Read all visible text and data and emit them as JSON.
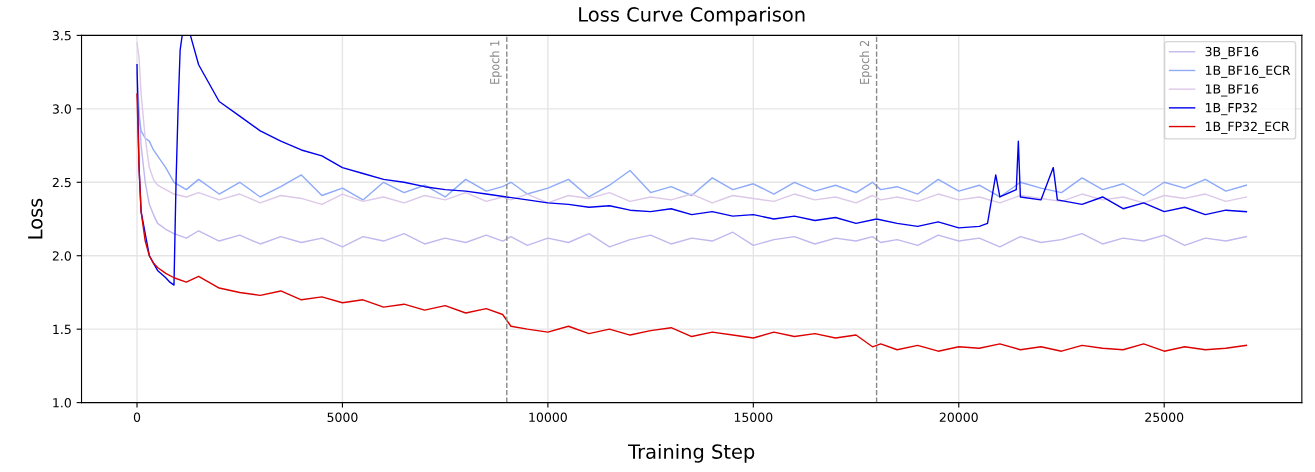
{
  "chart_data": {
    "type": "line",
    "title": "Loss Curve Comparison",
    "xlabel": "Training Step",
    "ylabel": "Loss",
    "xlim": [
      -1350,
      28350
    ],
    "ylim": [
      1.0,
      3.5
    ],
    "xticks": [
      0,
      5000,
      10000,
      15000,
      20000,
      25000
    ],
    "yticks": [
      {
        "value": 1.0,
        "label": "1.0"
      },
      1.5,
      {
        "value": 2.0,
        "label": "2.0"
      },
      2.5,
      {
        "value": 3.0,
        "label": "3.0"
      },
      3.5
    ],
    "grid": true,
    "legend": "top right",
    "x": [
      0,
      50,
      100,
      200,
      300,
      400,
      500,
      700,
      900,
      1200,
      1500,
      2000,
      2500,
      3000,
      3500,
      4000,
      4500,
      5000,
      5500,
      6000,
      6500,
      7000,
      7500,
      8000,
      8500,
      8900,
      9100,
      9500,
      10000,
      10500,
      11000,
      11500,
      12000,
      12500,
      13000,
      13500,
      14000,
      14500,
      15000,
      15500,
      16000,
      16500,
      17000,
      17500,
      17900,
      18100,
      18500,
      19000,
      19500,
      20000,
      20500,
      21000,
      21500,
      22000,
      22500,
      23000,
      23500,
      24000,
      24500,
      25000,
      25500,
      26000,
      26500,
      27000
    ],
    "series": [
      {
        "name": "3B_BF16",
        "color": "#c0b8ee",
        "values": [
          3.25,
          3.0,
          2.75,
          2.5,
          2.35,
          2.28,
          2.22,
          2.18,
          2.15,
          2.12,
          2.17,
          2.1,
          2.14,
          2.08,
          2.13,
          2.09,
          2.12,
          2.06,
          2.13,
          2.1,
          2.15,
          2.08,
          2.12,
          2.09,
          2.14,
          2.1,
          2.13,
          2.07,
          2.12,
          2.09,
          2.15,
          2.06,
          2.11,
          2.14,
          2.08,
          2.12,
          2.1,
          2.16,
          2.07,
          2.11,
          2.13,
          2.08,
          2.12,
          2.1,
          2.13,
          2.09,
          2.11,
          2.07,
          2.14,
          2.1,
          2.12,
          2.06,
          2.13,
          2.09,
          2.11,
          2.15,
          2.08,
          2.12,
          2.1,
          2.14,
          2.07,
          2.12,
          2.1,
          2.13
        ]
      },
      {
        "name": "1B_BF16_ECR",
        "color": "#8eaaf8",
        "values": [
          3.1,
          2.95,
          2.85,
          2.8,
          2.78,
          2.72,
          2.68,
          2.6,
          2.5,
          2.45,
          2.52,
          2.42,
          2.5,
          2.4,
          2.47,
          2.55,
          2.41,
          2.46,
          2.38,
          2.5,
          2.43,
          2.48,
          2.4,
          2.52,
          2.44,
          2.47,
          2.5,
          2.42,
          2.46,
          2.52,
          2.4,
          2.48,
          2.58,
          2.43,
          2.47,
          2.41,
          2.53,
          2.45,
          2.49,
          2.42,
          2.5,
          2.44,
          2.48,
          2.43,
          2.5,
          2.45,
          2.47,
          2.42,
          2.52,
          2.44,
          2.48,
          2.4,
          2.5,
          2.46,
          2.43,
          2.53,
          2.45,
          2.49,
          2.41,
          2.5,
          2.46,
          2.52,
          2.44,
          2.48
        ]
      },
      {
        "name": "1B_BF16",
        "color": "#dcc8e8",
        "values": [
          3.45,
          3.35,
          3.1,
          2.8,
          2.6,
          2.52,
          2.48,
          2.45,
          2.42,
          2.4,
          2.43,
          2.38,
          2.42,
          2.36,
          2.41,
          2.39,
          2.35,
          2.42,
          2.37,
          2.4,
          2.36,
          2.41,
          2.38,
          2.43,
          2.37,
          2.4,
          2.38,
          2.42,
          2.36,
          2.41,
          2.39,
          2.43,
          2.37,
          2.4,
          2.38,
          2.42,
          2.36,
          2.41,
          2.39,
          2.37,
          2.42,
          2.38,
          2.4,
          2.36,
          2.41,
          2.38,
          2.4,
          2.37,
          2.42,
          2.38,
          2.4,
          2.36,
          2.41,
          2.39,
          2.37,
          2.42,
          2.38,
          2.4,
          2.36,
          2.41,
          2.39,
          2.42,
          2.37,
          2.4
        ]
      },
      {
        "name": "1B_FP32",
        "color": "#0000ee",
        "x": [
          0,
          50,
          100,
          200,
          300,
          400,
          500,
          700,
          800,
          900,
          950,
          1000,
          1050,
          1100,
          1300,
          1500,
          2000,
          2500,
          3000,
          3500,
          4000,
          4500,
          5000,
          5500,
          6000,
          6500,
          7000,
          7500,
          8000,
          8500,
          9000,
          9500,
          10000,
          10500,
          11000,
          11500,
          12000,
          12500,
          13000,
          13500,
          14000,
          14500,
          15000,
          15500,
          16000,
          16500,
          17000,
          17500,
          18000,
          18500,
          19000,
          19500,
          20000,
          20500,
          20700,
          20900,
          21000,
          21400,
          21450,
          21500,
          22000,
          22300,
          22400,
          23000,
          23500,
          24000,
          24500,
          25000,
          25500,
          26000,
          26500,
          27000
        ],
        "values": [
          3.3,
          2.6,
          2.3,
          2.15,
          2.0,
          1.95,
          1.9,
          1.85,
          1.82,
          1.8,
          2.5,
          3.0,
          3.4,
          3.5,
          3.5,
          3.3,
          3.05,
          2.95,
          2.85,
          2.78,
          2.72,
          2.68,
          2.6,
          2.56,
          2.52,
          2.5,
          2.47,
          2.45,
          2.44,
          2.42,
          2.4,
          2.38,
          2.36,
          2.35,
          2.33,
          2.34,
          2.31,
          2.3,
          2.32,
          2.28,
          2.3,
          2.27,
          2.28,
          2.25,
          2.27,
          2.24,
          2.26,
          2.22,
          2.25,
          2.22,
          2.2,
          2.23,
          2.19,
          2.2,
          2.22,
          2.55,
          2.4,
          2.45,
          2.78,
          2.4,
          2.38,
          2.6,
          2.38,
          2.35,
          2.4,
          2.32,
          2.36,
          2.3,
          2.33,
          2.28,
          2.31,
          2.3
        ]
      },
      {
        "name": "1B_FP32_ECR",
        "color": "#dd0000",
        "values": [
          3.1,
          2.6,
          2.3,
          2.1,
          2.0,
          1.95,
          1.92,
          1.88,
          1.85,
          1.82,
          1.86,
          1.78,
          1.75,
          1.73,
          1.76,
          1.7,
          1.72,
          1.68,
          1.7,
          1.65,
          1.67,
          1.63,
          1.66,
          1.61,
          1.64,
          1.6,
          1.52,
          1.5,
          1.48,
          1.52,
          1.47,
          1.5,
          1.46,
          1.49,
          1.51,
          1.45,
          1.48,
          1.46,
          1.44,
          1.48,
          1.45,
          1.47,
          1.44,
          1.46,
          1.38,
          1.4,
          1.36,
          1.39,
          1.35,
          1.38,
          1.37,
          1.4,
          1.36,
          1.38,
          1.35,
          1.39,
          1.37,
          1.36,
          1.4,
          1.35,
          1.38,
          1.36,
          1.37,
          1.39
        ]
      }
    ],
    "ref_lines": [
      {
        "axis": "x",
        "value": 9000,
        "label": "Epoch 1",
        "color": "#888888",
        "line_style": "dashed"
      },
      {
        "axis": "x",
        "value": 18000,
        "label": "Epoch 2",
        "color": "#888888",
        "line_style": "dashed"
      }
    ]
  }
}
